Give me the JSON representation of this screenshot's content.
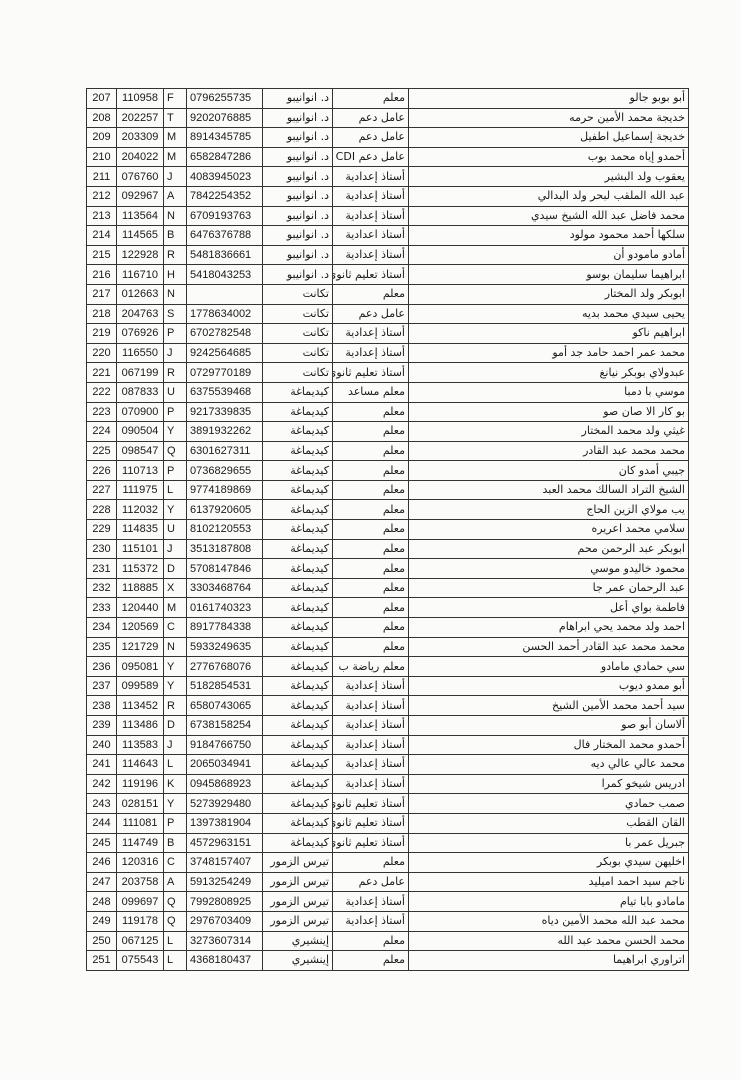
{
  "rows": [
    {
      "n": "207",
      "id": "110958",
      "l": "F",
      "nni": "0796255735",
      "loc": "د. انوانيبو",
      "job": "معلم",
      "name": "أبو بوبو جالو"
    },
    {
      "n": "208",
      "id": "202257",
      "l": "T",
      "nni": "9202076885",
      "loc": "د. انوانيبو",
      "job": "عامل دعم",
      "name": "خديجة محمد الأمين حرمه"
    },
    {
      "n": "209",
      "id": "203309",
      "l": "M",
      "nni": "8914345785",
      "loc": "د. انوانيبو",
      "job": "عامل دعم",
      "name": "خديجة إسماعيل اطفيل"
    },
    {
      "n": "210",
      "id": "204022",
      "l": "M",
      "nni": "6582847286",
      "loc": "د. انوانيبو",
      "job": "عامل دعم CDI",
      "name": "أحمدو إياه محمد بوب"
    },
    {
      "n": "211",
      "id": "076760",
      "l": "J",
      "nni": "4083945023",
      "loc": "د. انوانيبو",
      "job": "أستاذ إعدادية",
      "name": "يعقوب ولد البشير"
    },
    {
      "n": "212",
      "id": "092967",
      "l": "A",
      "nni": "7842254352",
      "loc": "د. انوانيبو",
      "job": "أستاذ إعدادية",
      "name": "عبد الله الملقب لبحر ولد البدالي"
    },
    {
      "n": "213",
      "id": "113564",
      "l": "N",
      "nni": "6709193763",
      "loc": "د. انوانيبو",
      "job": "أستاذ إعدادية",
      "name": "محمد فاضل عبد الله الشيخ سيدي"
    },
    {
      "n": "214",
      "id": "114565",
      "l": "B",
      "nni": "6476376788",
      "loc": "د. انوانيبو",
      "job": "أستاذ اعدادية",
      "name": "سلكها أحمد محمود مولود"
    },
    {
      "n": "215",
      "id": "122928",
      "l": "R",
      "nni": "5481836661",
      "loc": "د. انوانيبو",
      "job": "أستاذ إعدادية",
      "name": "أمادو مامودو أن"
    },
    {
      "n": "216",
      "id": "116710",
      "l": "H",
      "nni": "5418043253",
      "loc": "د. انوانيبو",
      "job": "أستاذ تعليم ثانوي",
      "name": "ابراهيما سليمان بوسو"
    },
    {
      "n": "217",
      "id": "012663",
      "l": "N",
      "nni": "",
      "loc": "تكانت",
      "job": "معلم",
      "name": "ابوبكر ولد المختار"
    },
    {
      "n": "218",
      "id": "204763",
      "l": "S",
      "nni": "1778634002",
      "loc": "تكانت",
      "job": "عامل دعم",
      "name": "يحيى سيدي محمد بديه"
    },
    {
      "n": "219",
      "id": "076926",
      "l": "P",
      "nni": "6702782548",
      "loc": "تكانت",
      "job": "أستاذ إعدادية",
      "name": "ابراهيم ناكو"
    },
    {
      "n": "220",
      "id": "116550",
      "l": "J",
      "nni": "9242564685",
      "loc": "تكانت",
      "job": "أستاذ إعدادية",
      "name": "محمد عمر احمد حامد جد أمو"
    },
    {
      "n": "221",
      "id": "067199",
      "l": "R",
      "nni": "0729770189",
      "loc": "تكانت",
      "job": "أستاذ تعليم ثانوي",
      "name": "عبدولاي بوبكر نيانغ"
    },
    {
      "n": "222",
      "id": "087833",
      "l": "U",
      "nni": "6375539468",
      "loc": "كيديماغة",
      "job": "معلم مساعد",
      "name": "موسي با دمبا"
    },
    {
      "n": "223",
      "id": "070900",
      "l": "P",
      "nni": "9217339835",
      "loc": "كيديماغة",
      "job": "معلم",
      "name": "بو كار الا صان صو"
    },
    {
      "n": "224",
      "id": "090504",
      "l": "Y",
      "nni": "3891932262",
      "loc": "كيديماغة",
      "job": "معلم",
      "name": "غيثي ولد محمد المختار"
    },
    {
      "n": "225",
      "id": "098547",
      "l": "Q",
      "nni": "6301627311",
      "loc": "كيديماغة",
      "job": "معلم",
      "name": "محمد محمد عبد القادر"
    },
    {
      "n": "226",
      "id": "110713",
      "l": "P",
      "nni": "0736829655",
      "loc": "كيديماغة",
      "job": "معلم",
      "name": "جيبي أمدو كان"
    },
    {
      "n": "227",
      "id": "111975",
      "l": "L",
      "nni": "9774189869",
      "loc": "كيديماغة",
      "job": "معلم",
      "name": "الشيخ التراد السالك محمد العبد"
    },
    {
      "n": "228",
      "id": "112032",
      "l": "Y",
      "nni": "6137920605",
      "loc": "كيديماغة",
      "job": "معلم",
      "name": "يب مولاي الزين الحاج"
    },
    {
      "n": "229",
      "id": "114835",
      "l": "U",
      "nni": "8102120553",
      "loc": "كيديماغة",
      "job": "معلم",
      "name": "سلامي محمد اعريره"
    },
    {
      "n": "230",
      "id": "115101",
      "l": "J",
      "nni": "3513187808",
      "loc": "كيديماغة",
      "job": "معلم",
      "name": "ابوبكر عبد الرحمن محم"
    },
    {
      "n": "231",
      "id": "115372",
      "l": "D",
      "nni": "5708147846",
      "loc": "كيديماغة",
      "job": "معلم",
      "name": "محمود خاليدو موسي"
    },
    {
      "n": "232",
      "id": "118885",
      "l": "X",
      "nni": "3303468764",
      "loc": "كيديماغة",
      "job": "معلم",
      "name": "عبد الرحمان عمر جا"
    },
    {
      "n": "233",
      "id": "120440",
      "l": "M",
      "nni": "0161740323",
      "loc": "كيديماغة",
      "job": "معلم",
      "name": "فاطمة بواي أعل"
    },
    {
      "n": "234",
      "id": "120569",
      "l": "C",
      "nni": "8917784338",
      "loc": "كيديماغة",
      "job": "معلم",
      "name": "احمد ولد محمد يحي ابراهام"
    },
    {
      "n": "235",
      "id": "121729",
      "l": "N",
      "nni": "5933249635",
      "loc": "كيديماغة",
      "job": "معلم",
      "name": "محمد محمد عبد القادر أحمد الحسن"
    },
    {
      "n": "236",
      "id": "095081",
      "l": "Y",
      "nni": "2776768076",
      "loc": "كيديماغة",
      "job": "معلم رياضة ب",
      "name": "سي حمادي مامادو"
    },
    {
      "n": "237",
      "id": "099589",
      "l": "Y",
      "nni": "5182854531",
      "loc": "كيديماغة",
      "job": "أستاذ إعدادية",
      "name": "أبو ممدو ديوب"
    },
    {
      "n": "238",
      "id": "113452",
      "l": "R",
      "nni": "6580743065",
      "loc": "كيديماغة",
      "job": "أستاذ إعدادية",
      "name": "سيد أحمد محمد الأمين الشيخ"
    },
    {
      "n": "239",
      "id": "113486",
      "l": "D",
      "nni": "6738158254",
      "loc": "كيديماغة",
      "job": "أستاذ إعدادية",
      "name": "ألاسان أبو صو"
    },
    {
      "n": "240",
      "id": "113583",
      "l": "J",
      "nni": "9184766750",
      "loc": "كيديماغة",
      "job": "أستاذ إعدادية",
      "name": "أحمدو محمد المختار فال"
    },
    {
      "n": "241",
      "id": "114643",
      "l": "L",
      "nni": "2065034941",
      "loc": "كيديماغة",
      "job": "أستاذ إعدادية",
      "name": "محمد عالي عالي ديه"
    },
    {
      "n": "242",
      "id": "119196",
      "l": "K",
      "nni": "0945868923",
      "loc": "كيديماغة",
      "job": "أستاذ إعدادية",
      "name": "ادريس شيخو كمرا"
    },
    {
      "n": "243",
      "id": "028151",
      "l": "Y",
      "nni": "5273929480",
      "loc": "كيديماغة",
      "job": "أستاذ تعليم ثانوي",
      "name": "صمب حمادي"
    },
    {
      "n": "244",
      "id": "111081",
      "l": "P",
      "nni": "1397381904",
      "loc": "كيديماغة",
      "job": "أستاذ تعليم ثانوي",
      "name": "القان القطب"
    },
    {
      "n": "245",
      "id": "114749",
      "l": "B",
      "nni": "4572963151",
      "loc": "كيديماغة",
      "job": "أستاذ تعليم ثانوي",
      "name": "جبريل عمر با"
    },
    {
      "n": "246",
      "id": "120316",
      "l": "C",
      "nni": "3748157407",
      "loc": "تيرس الزمور",
      "job": "معلم",
      "name": "اخليهن سيدي بوبكر"
    },
    {
      "n": "247",
      "id": "203758",
      "l": "A",
      "nni": "5913254249",
      "loc": "تيرس الزمور",
      "job": "عامل دعم",
      "name": "ناجم سيد احمد اميليد"
    },
    {
      "n": "248",
      "id": "099697",
      "l": "Q",
      "nni": "7992808925",
      "loc": "تيرس الزمور",
      "job": "أستاذ إعدادية",
      "name": "مامادو بابا تيام"
    },
    {
      "n": "249",
      "id": "119178",
      "l": "Q",
      "nni": "2976703409",
      "loc": "تيرس الزمور",
      "job": "أستاذ إعدادية",
      "name": "محمد عبد الله محمد الأمين دياه"
    },
    {
      "n": "250",
      "id": "067125",
      "l": "L",
      "nni": "3273607314",
      "loc": "إينشيري",
      "job": "معلم",
      "name": "محمد الحسن محمد عبد الله"
    },
    {
      "n": "251",
      "id": "075543",
      "l": "L",
      "nni": "4368180437",
      "loc": "إينشيري",
      "job": "معلم",
      "name": "اتراوري ابراهيما"
    }
  ]
}
